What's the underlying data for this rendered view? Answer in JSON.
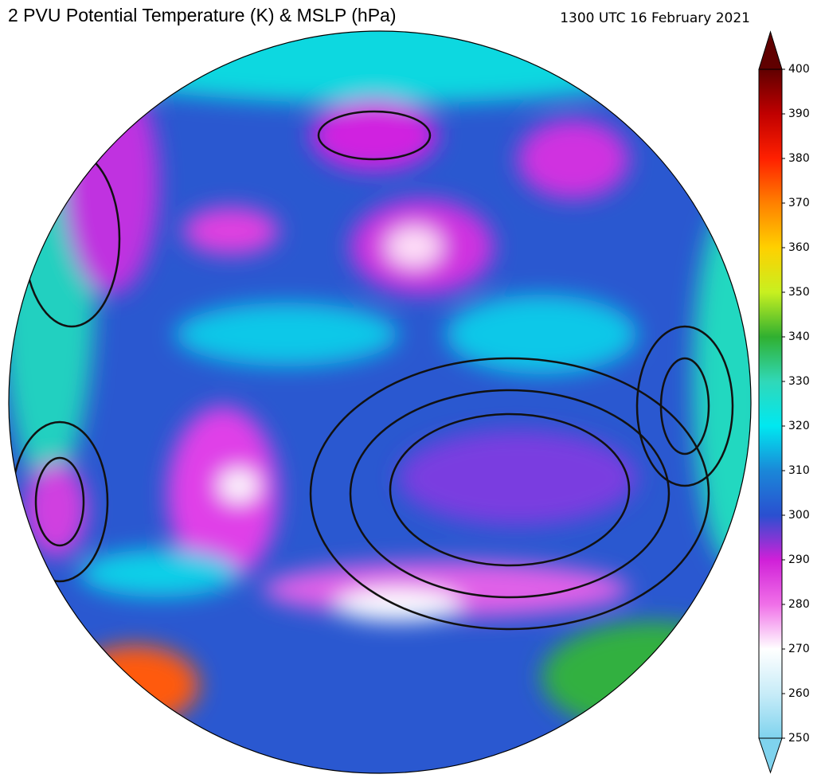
{
  "header": {
    "title": "2 PVU Potential Temperature (K) & MSLP (hPa)",
    "timestamp": "1300 UTC 16 February 2021"
  },
  "colorbar": {
    "ticks": [
      250,
      260,
      270,
      280,
      290,
      300,
      310,
      320,
      330,
      340,
      350,
      360,
      370,
      380,
      390,
      400
    ],
    "colors": [
      "#7fd3ee",
      "#c8ecf8",
      "#ffffff",
      "#f070e8",
      "#d020d8",
      "#2a50d0",
      "#1a88d8",
      "#00e8f0",
      "#30d8b8",
      "#30b030",
      "#c8f020",
      "#ffd000",
      "#ff8000",
      "#ff2000",
      "#c00000",
      "#600000"
    ]
  }
}
